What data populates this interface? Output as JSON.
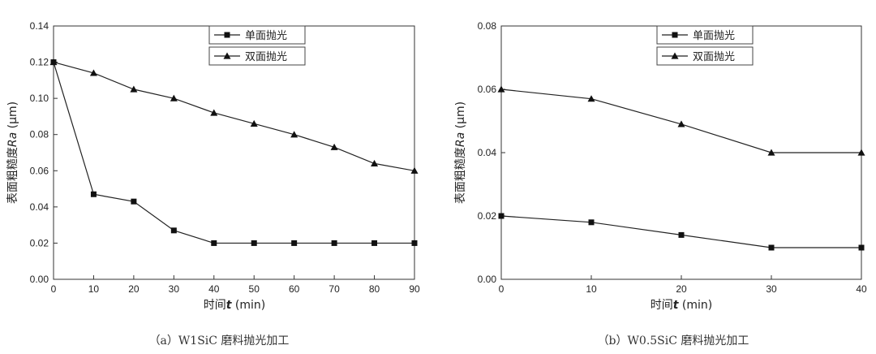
{
  "chart_data": [
    {
      "id": "a",
      "type": "line",
      "caption": "（a）W1SiC 磨料抛光加工",
      "xlabel_prefix": "时间",
      "xlabel_var": "t",
      "xlabel_suffix": " (min)",
      "ylabel_prefix": "表面粗糙度",
      "ylabel_var": "Ra",
      "ylabel_suffix": " (μm)",
      "xlim": [
        0,
        90
      ],
      "ylim": [
        0,
        0.14
      ],
      "xticks": [
        "0",
        "10",
        "20",
        "30",
        "40",
        "50",
        "60",
        "70",
        "80",
        "90"
      ],
      "yticks": [
        "0.00",
        "0.02",
        "0.04",
        "0.06",
        "0.08",
        "0.10",
        "0.12",
        "0.14"
      ],
      "legend_position": "top-right",
      "grid": false,
      "series": [
        {
          "name": "单面抛光",
          "marker": "square",
          "x": [
            0,
            10,
            20,
            30,
            40,
            50,
            60,
            70,
            80,
            90
          ],
          "y": [
            0.12,
            0.047,
            0.043,
            0.027,
            0.02,
            0.02,
            0.02,
            0.02,
            0.02,
            0.02
          ]
        },
        {
          "name": "双面抛光",
          "marker": "triangle",
          "x": [
            0,
            10,
            20,
            30,
            40,
            50,
            60,
            70,
            80,
            90
          ],
          "y": [
            0.12,
            0.114,
            0.105,
            0.1,
            0.092,
            0.086,
            0.08,
            0.073,
            0.064,
            0.06
          ]
        }
      ]
    },
    {
      "id": "b",
      "type": "line",
      "caption": "（b）W0.5SiC 磨料抛光加工",
      "xlabel_prefix": "时间",
      "xlabel_var": "t",
      "xlabel_suffix": " (min)",
      "ylabel_prefix": "表面粗糙度",
      "ylabel_var": "Ra",
      "ylabel_suffix": " (μm)",
      "xlim": [
        0,
        40
      ],
      "ylim": [
        0,
        0.08
      ],
      "xticks": [
        "0",
        "10",
        "20",
        "30",
        "40"
      ],
      "yticks": [
        "0.00",
        "0.02",
        "0.04",
        "0.06",
        "0.08"
      ],
      "legend_position": "top-right",
      "grid": false,
      "series": [
        {
          "name": "单面抛光",
          "marker": "square",
          "x": [
            0,
            10,
            20,
            30,
            40
          ],
          "y": [
            0.02,
            0.018,
            0.014,
            0.01,
            0.01
          ]
        },
        {
          "name": "双面抛光",
          "marker": "triangle",
          "x": [
            0,
            10,
            20,
            30,
            40
          ],
          "y": [
            0.06,
            0.057,
            0.049,
            0.04,
            0.04
          ]
        }
      ]
    }
  ]
}
